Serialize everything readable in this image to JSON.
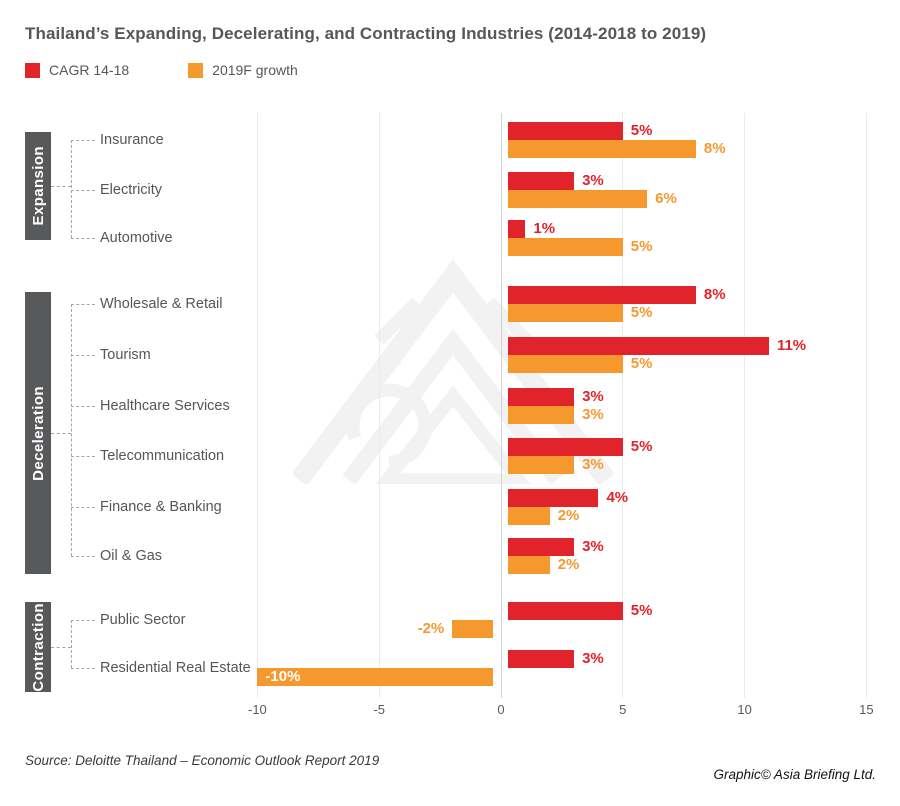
{
  "title": "Thailand’s Expanding, Decelerating, and Contracting Industries (2014-2018 to 2019)",
  "legend": {
    "items": [
      {
        "label": "CAGR 14-18",
        "color": "#E1242B"
      },
      {
        "label": "2019F growth",
        "color": "#F5992F"
      }
    ]
  },
  "chart_data": {
    "type": "bar",
    "orientation": "horizontal",
    "title": "Thailand’s Expanding, Decelerating, and Contracting Industries (2014-2018 to 2019)",
    "series_names": [
      "CAGR 14-18",
      "2019F growth"
    ],
    "series_colors": [
      "#E1242B",
      "#F5992F"
    ],
    "x_ticks": [
      -10,
      -5,
      0,
      5,
      10,
      15
    ],
    "xlim": [
      -10,
      15
    ],
    "unit": "%",
    "grid": "vertical-light",
    "legend_position": "top-left",
    "groups": [
      {
        "name": "Expansion",
        "rows": [
          {
            "label": "Insurance",
            "values": [
              5,
              8
            ]
          },
          {
            "label": "Electricity",
            "values": [
              3,
              6
            ]
          },
          {
            "label": "Automotive",
            "values": [
              1,
              5
            ]
          }
        ]
      },
      {
        "name": "Deceleration",
        "rows": [
          {
            "label": "Wholesale & Retail",
            "values": [
              8,
              5
            ]
          },
          {
            "label": "Tourism",
            "values": [
              11,
              5
            ]
          },
          {
            "label": "Healthcare Services",
            "values": [
              3,
              3
            ]
          },
          {
            "label": "Telecommunication",
            "values": [
              5,
              3
            ]
          },
          {
            "label": "Finance & Banking",
            "values": [
              4,
              2
            ]
          },
          {
            "label": "Oil & Gas",
            "values": [
              3,
              2
            ]
          }
        ]
      },
      {
        "name": "Contraction",
        "rows": [
          {
            "label": "Public Sector",
            "values": [
              5,
              -2
            ]
          },
          {
            "label": "Residential Real Estate",
            "values": [
              3,
              -10
            ]
          }
        ]
      }
    ]
  },
  "footer": {
    "source": "Source: Deloitte Thailand – Economic Outlook Report 2019",
    "credit": "Graphic© Asia Briefing Ltd."
  }
}
